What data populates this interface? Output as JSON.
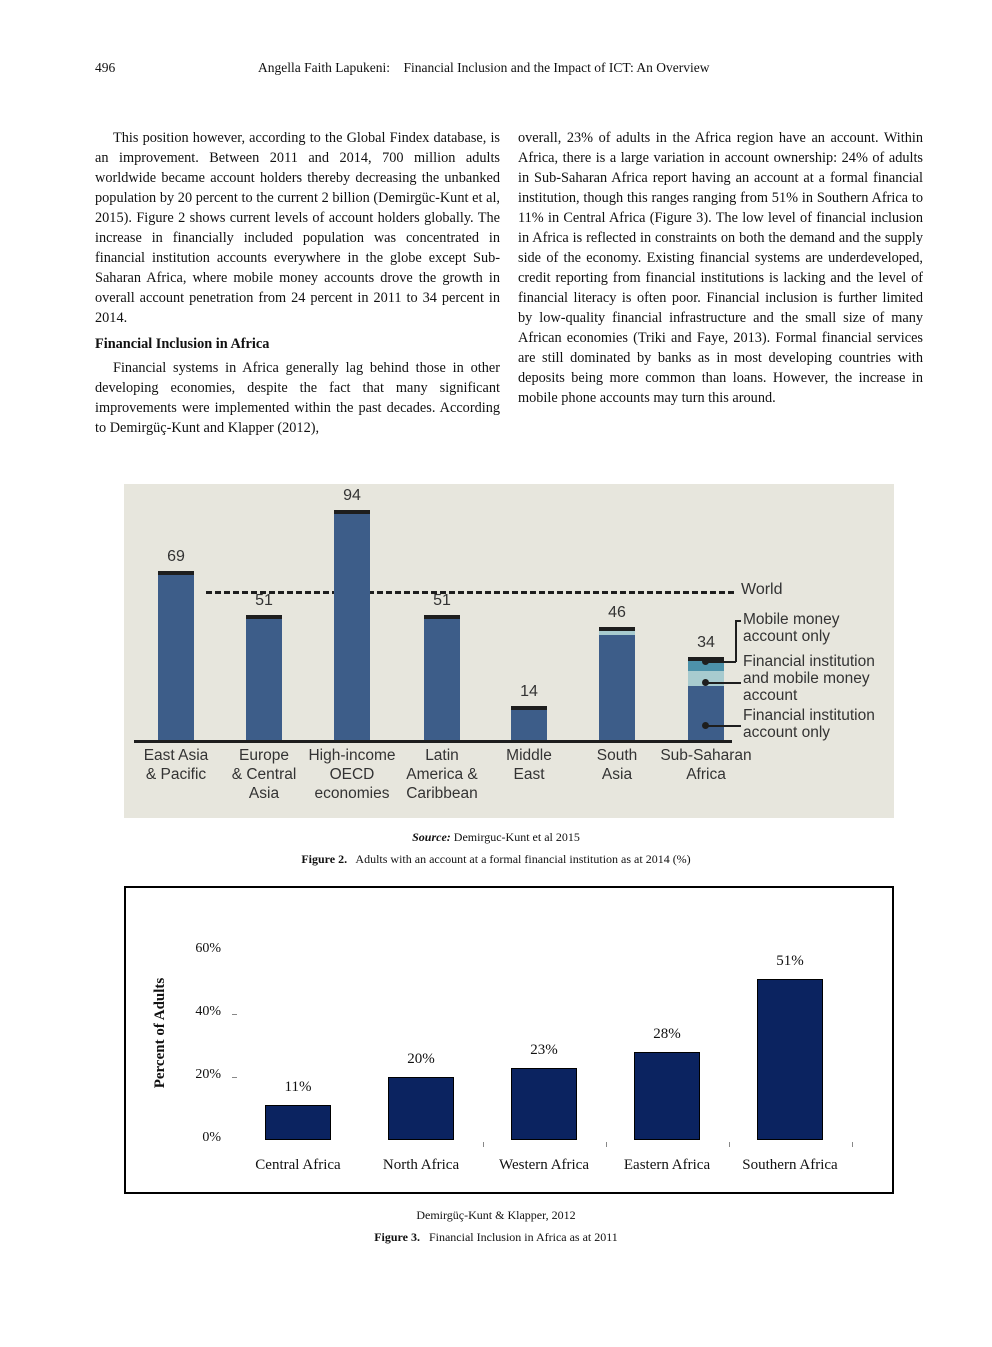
{
  "header": {
    "page_number": "496",
    "running_title": "Angella Faith Lapukeni:    Financial Inclusion and the Impact of ICT: An Overview"
  },
  "left_column": {
    "para1": "This position however, according to the Global Findex database, is an improvement. Between 2011 and 2014, 700 million adults worldwide became account holders thereby decreasing the unbanked population by 20 percent to the current 2 billion (Demirgüc-Kunt et al, 2015). Figure 2 shows current levels of account holders globally. The increase in financially included population was concentrated in financial institution accounts everywhere in the globe except Sub-Saharan Africa, where mobile money accounts drove the growth in overall account penetration from 24 percent in 2011 to 34 percent in 2014.",
    "heading": "Financial Inclusion in Africa",
    "para2": "Financial systems in Africa generally lag behind those in other developing economies, despite the fact that many significant improvements were implemented within the past decades. According to Demirgüç-Kunt and Klapper (2012),"
  },
  "right_column": {
    "para1": "overall, 23% of adults in the Africa region have an account. Within Africa, there is a large variation in account ownership: 24% of adults in Sub-Saharan Africa report having an account at a formal financial institution, though this ranges ranging from 51% in Southern Africa to 11% in Central Africa (Figure 3). The low level of financial inclusion in Africa is reflected in constraints on both the demand and the supply side of the economy. Existing financial systems are underdeveloped, credit reporting from financial institutions is lacking and the level of financial literacy is often poor. Financial inclusion is further limited by low-quality financial infrastructure and the small size of many African economies (Triki and Faye, 2013). Formal financial services are still dominated by banks as in most developing countries with deposits being more common than loans. However, the increase in mobile phone accounts may turn this around."
  },
  "figure2": {
    "source_label": "Source:",
    "source_text": " Demirguc-Kunt et al 2015",
    "caption_label": "Figure 2.",
    "caption_text": "   Adults with an account at a formal financial institution as at 2014 (%)",
    "world_label": "World",
    "legend": {
      "mobile_only": "Mobile money\naccount only",
      "both": "Financial institution\nand mobile money\naccount",
      "fi_only": "Financial institution\naccount only"
    },
    "colors": {
      "fi_only": "#3d5d89",
      "both": "#a8cbcf",
      "mobile_only": "#4d92aa",
      "background": "#e7e6dd"
    }
  },
  "figure3": {
    "source_text": "Demirgüç-Kunt & Klapper, 2012",
    "caption_label": "Figure 3.",
    "caption_text": "   Financial Inclusion in Africa as at 2011",
    "ylabel": "Percent of Adults",
    "bar_color": "#0b2360"
  },
  "chart_data": [
    {
      "type": "bar",
      "stacked": true,
      "title": "Adults with an account at a formal financial institution as at 2014 (%)",
      "xlabel": "",
      "ylabel": "",
      "ylim": [
        0,
        100
      ],
      "grid": false,
      "legend_position": "right",
      "categories": [
        "East Asia & Pacific",
        "Europe & Central Asia",
        "High-income OECD economies",
        "Latin America & Caribbean",
        "Middle East",
        "South Asia",
        "Sub-Saharan Africa"
      ],
      "totals": [
        69,
        51,
        94,
        51,
        14,
        46,
        34
      ],
      "series": [
        {
          "name": "Financial institution account only",
          "values": [
            69,
            51,
            94,
            50,
            14,
            43,
            22
          ]
        },
        {
          "name": "Financial institution and mobile money account",
          "values": [
            0,
            0,
            0,
            1,
            0,
            2,
            6
          ]
        },
        {
          "name": "Mobile money account only",
          "values": [
            0,
            0,
            0,
            0,
            0,
            1,
            6
          ]
        }
      ],
      "reference_lines": [
        {
          "name": "World",
          "value": 61,
          "style": "dashed"
        }
      ],
      "annotations": [
        "69",
        "51",
        "94",
        "51",
        "14",
        "46",
        "34"
      ]
    },
    {
      "type": "bar",
      "title": "Financial Inclusion in Africa as at 2011",
      "xlabel": "",
      "ylabel": "Percent of Adults",
      "ylim": [
        0,
        60
      ],
      "yticks": [
        "0%",
        "20%",
        "40%",
        "60%"
      ],
      "grid": false,
      "categories": [
        "Central Africa",
        "North Africa",
        "Western Africa",
        "Eastern Africa",
        "Southern Africa"
      ],
      "values": [
        11,
        20,
        23,
        28,
        51
      ],
      "data_labels": [
        "11%",
        "20%",
        "23%",
        "28%",
        "51%"
      ]
    }
  ]
}
